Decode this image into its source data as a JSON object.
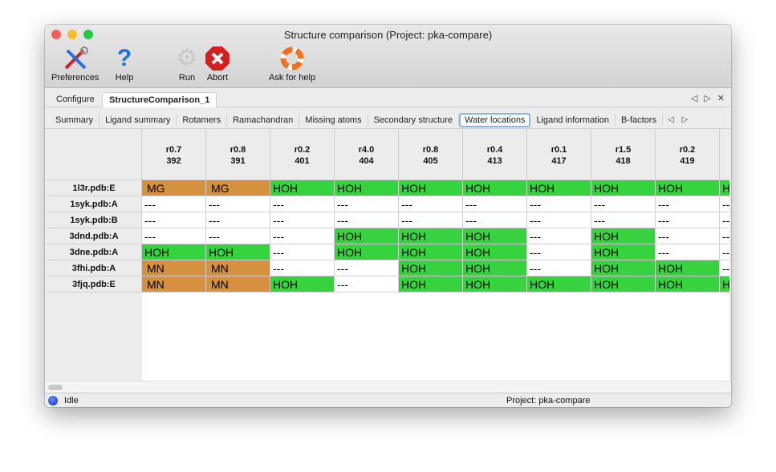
{
  "window": {
    "title": "Structure comparison (Project: pka-compare)"
  },
  "toolbar": [
    {
      "label": "Preferences",
      "icon": "tools-icon"
    },
    {
      "label": "Help",
      "icon": "help-icon"
    },
    {
      "label": "Run",
      "icon": "gear-icon"
    },
    {
      "label": "Abort",
      "icon": "abort-icon"
    },
    {
      "label": "Ask for help",
      "icon": "lifebuoy-icon"
    }
  ],
  "tabs": [
    "Configure",
    "StructureComparison_1"
  ],
  "subtabs": [
    "Summary",
    "Ligand summary",
    "Rotamers",
    "Ramachandran",
    "Missing atoms",
    "Secondary structure",
    "Water locations",
    "Ligand information",
    "B-factors"
  ],
  "active_subtab": "Water locations",
  "table": {
    "columns": [
      [
        "r0.7",
        "392"
      ],
      [
        "r0.8",
        "391"
      ],
      [
        "r0.2",
        "401"
      ],
      [
        "r4.0",
        "404"
      ],
      [
        "r0.8",
        "405"
      ],
      [
        "r0.4",
        "413"
      ],
      [
        "r0.1",
        "417"
      ],
      [
        "r1.5",
        "418"
      ],
      [
        "r0.2",
        "419"
      ],
      [
        "",
        ""
      ]
    ],
    "rows": [
      {
        "label": "1l3r.pdb:E",
        "cells": [
          "MG",
          "MG",
          "HOH",
          "HOH",
          "HOH",
          "HOH",
          "HOH",
          "HOH",
          "HOH",
          "HOH"
        ]
      },
      {
        "label": "1syk.pdb:A",
        "cells": [
          "---",
          "---",
          "---",
          "---",
          "---",
          "---",
          "---",
          "---",
          "---",
          "---"
        ]
      },
      {
        "label": "1syk.pdb:B",
        "cells": [
          "---",
          "---",
          "---",
          "---",
          "---",
          "---",
          "---",
          "---",
          "---",
          "---"
        ]
      },
      {
        "label": "3dnd.pdb:A",
        "cells": [
          "---",
          "---",
          "---",
          "HOH",
          "HOH",
          "HOH",
          "---",
          "HOH",
          "---",
          "---"
        ]
      },
      {
        "label": "3dne.pdb:A",
        "cells": [
          "HOH",
          "HOH",
          "---",
          "HOH",
          "HOH",
          "HOH",
          "---",
          "HOH",
          "---",
          "---"
        ]
      },
      {
        "label": "3fhi.pdb:A",
        "cells": [
          "MN",
          "MN",
          "---",
          "---",
          "HOH",
          "HOH",
          "---",
          "HOH",
          "HOH",
          "---"
        ]
      },
      {
        "label": "3fjq.pdb:E",
        "cells": [
          "MN",
          "MN",
          "HOH",
          "---",
          "HOH",
          "HOH",
          "HOH",
          "HOH",
          "HOH",
          "HOH"
        ]
      }
    ]
  },
  "colors": {
    "metal": "#d59140",
    "water": "#38d13f",
    "empty": "#ffffff"
  },
  "status": {
    "state": "Idle",
    "project": "Project: pka-compare"
  }
}
